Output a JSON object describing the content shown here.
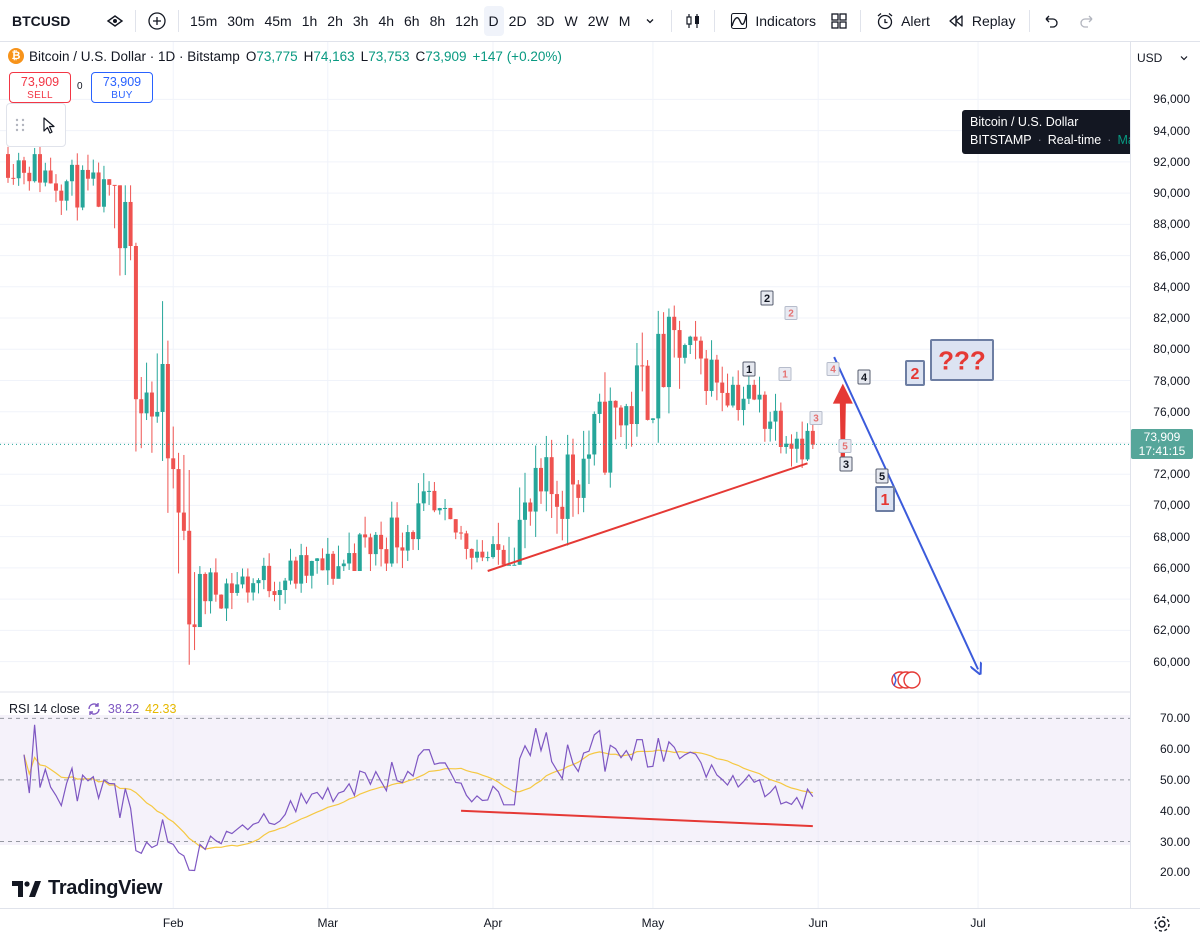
{
  "toolbar": {
    "symbol": "BTCUSD",
    "intervals": [
      "15m",
      "30m",
      "45m",
      "1h",
      "2h",
      "3h",
      "4h",
      "6h",
      "8h",
      "12h",
      "D",
      "2D",
      "3D",
      "W",
      "2W",
      "M"
    ],
    "active_interval": "D",
    "indicators_label": "Indicators",
    "alert_label": "Alert",
    "replay_label": "Replay"
  },
  "legend": {
    "title": "Bitcoin / U.S. Dollar · 1D · Bitstamp",
    "open_key": "O",
    "open": "73,775",
    "high_key": "H",
    "high": "74,163",
    "low_key": "L",
    "low": "73,753",
    "close_key": "C",
    "close": "73,909",
    "change": "+147 (+0.20%)"
  },
  "trade": {
    "sell_price": "73,909",
    "sell_label": "SELL",
    "buy_price": "73,909",
    "buy_label": "BUY",
    "spread": "0"
  },
  "price_axis": {
    "currency": "USD",
    "ticks": [
      "96,000",
      "94,000",
      "92,000",
      "90,000",
      "88,000",
      "86,000",
      "84,000",
      "82,000",
      "80,000",
      "78,000",
      "76,000",
      "74,000",
      "72,000",
      "70,000",
      "68,000",
      "66,000",
      "64,000",
      "62,000",
      "60,000"
    ],
    "last_price": "73,909",
    "countdown": "17:41:15"
  },
  "tooltip": {
    "name": "Bitcoin / U.S. Dollar",
    "exchange": "BITSTAMP",
    "sep": "·",
    "realtime": "Real-time",
    "status": "Market open"
  },
  "rsi": {
    "label": "RSI 14 close",
    "rsi_value": "38.22",
    "ma_value": "42.33",
    "ticks": [
      "70.00",
      "60.00",
      "50.00",
      "40.00",
      "30.00",
      "20.00"
    ]
  },
  "time_axis": [
    "Feb",
    "Mar",
    "Apr",
    "May",
    "Jun",
    "Jul"
  ],
  "branding": "TradingView",
  "wave_labels": [
    "1",
    "2",
    "3",
    "4",
    "5",
    "1",
    "2",
    "3",
    "4",
    "5",
    "1",
    "2",
    "???"
  ],
  "colors": {
    "up": "#26a69a",
    "down": "#ef5350",
    "rsi_line": "#7e57c2",
    "rsi_ma": "#f5c842",
    "trendline": "#e53935",
    "projection": "#3b5bdb",
    "accent": "#2962ff"
  },
  "chart_data": {
    "type": "candlestick",
    "title": "Bitcoin / U.S. Dollar · 1D · Bitstamp",
    "price_range": [
      58500,
      97500
    ],
    "rsi_range": [
      12,
      74
    ],
    "rsi_levels": [
      70,
      50,
      30
    ],
    "segments": [
      {
        "from": "Jan 01",
        "to": "Jan 20",
        "start": 92500,
        "end": 89500,
        "high": 96000,
        "low": 88200
      },
      {
        "from": "Jan 21",
        "to": "Feb 05",
        "start": 89500,
        "end": 64500,
        "high": 90500,
        "low": 59800
      },
      {
        "from": "Feb 06",
        "to": "Mar 02",
        "start": 64500,
        "end": 66000,
        "high": 70500,
        "low": 62600
      },
      {
        "from": "Mar 03",
        "to": "Mar 20",
        "start": 66000,
        "end": 69500,
        "high": 75800,
        "low": 65800
      },
      {
        "from": "Mar 21",
        "to": "Apr 01",
        "start": 69500,
        "end": 66500,
        "high": 71500,
        "low": 65200
      },
      {
        "from": "Apr 02",
        "to": "May 06",
        "start": 66500,
        "end": 80000,
        "high": 82800,
        "low": 66200
      },
      {
        "from": "May 07",
        "to": "May 31",
        "start": 80000,
        "end": 73909,
        "high": 82000,
        "low": 72400
      }
    ],
    "last_close": 73909,
    "annotations": {
      "trendline": [
        {
          "date": "Mar 31",
          "price": 65800
        },
        {
          "date": "May 30",
          "price": 72700
        }
      ],
      "rsi_trendline": [
        {
          "date": "Mar 26",
          "rsi": 40
        },
        {
          "date": "May 31",
          "rsi": 35
        }
      ],
      "projection_arrow": [
        {
          "date": "Jun 04",
          "price": 79500
        },
        {
          "date": "Jul 01",
          "price": 59500
        }
      ],
      "up_arrow": [
        {
          "date": "May 31",
          "price": 72700
        },
        {
          "date": "May 31",
          "price": 77800
        }
      ]
    }
  }
}
